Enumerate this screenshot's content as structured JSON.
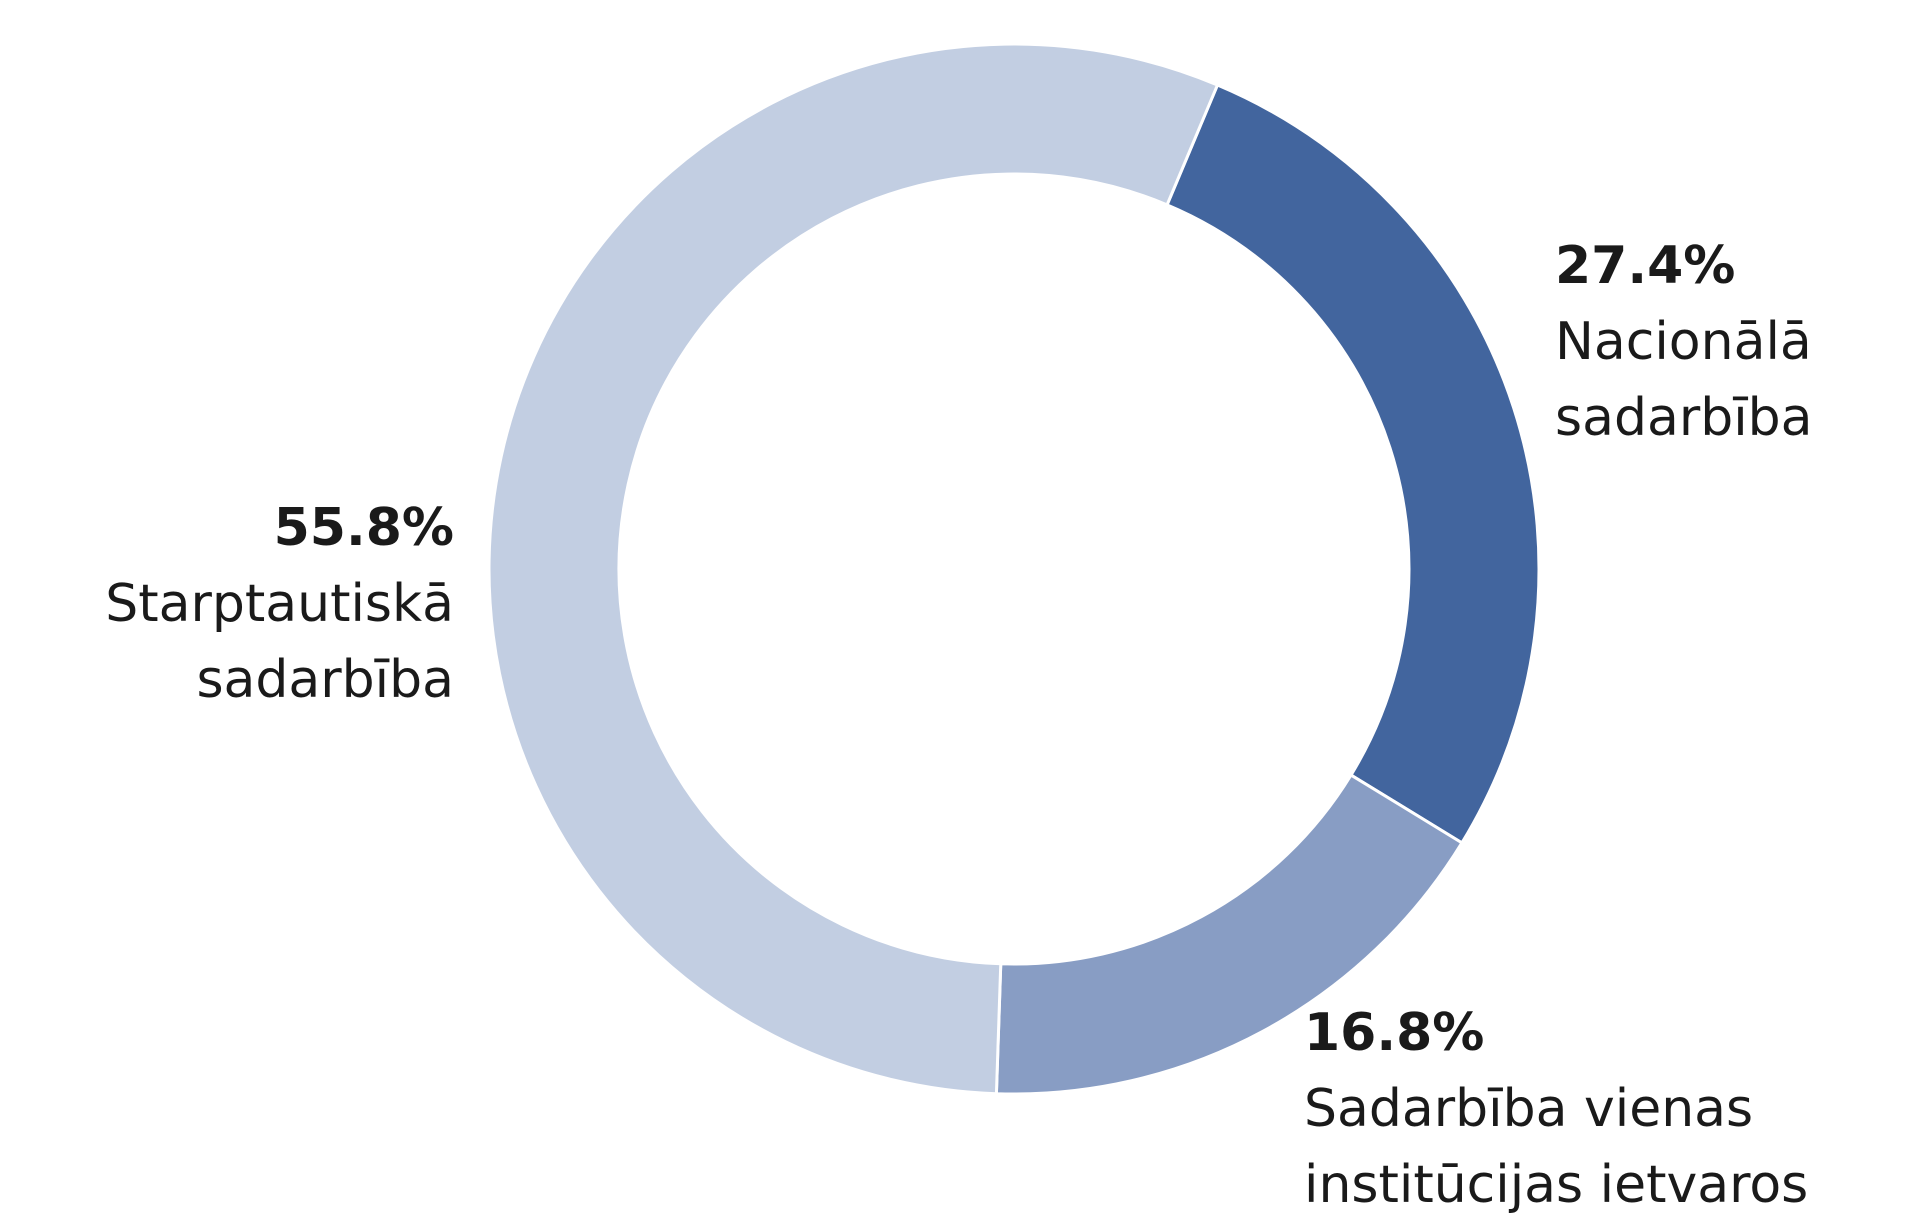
{
  "chart_data": {
    "type": "donut",
    "categories": [
      "Nacionālā\nsadarbība",
      "Sadarbība vienas\ninstitūcijas ietvaros",
      "Starptautiskā\nsadarbība"
    ],
    "values": [
      27.4,
      16.8,
      55.8
    ],
    "value_labels": [
      "27.4%",
      "16.8%",
      "55.8%"
    ],
    "colors": [
      "#42659e",
      "#889dc4",
      "#c2cee2"
    ]
  }
}
